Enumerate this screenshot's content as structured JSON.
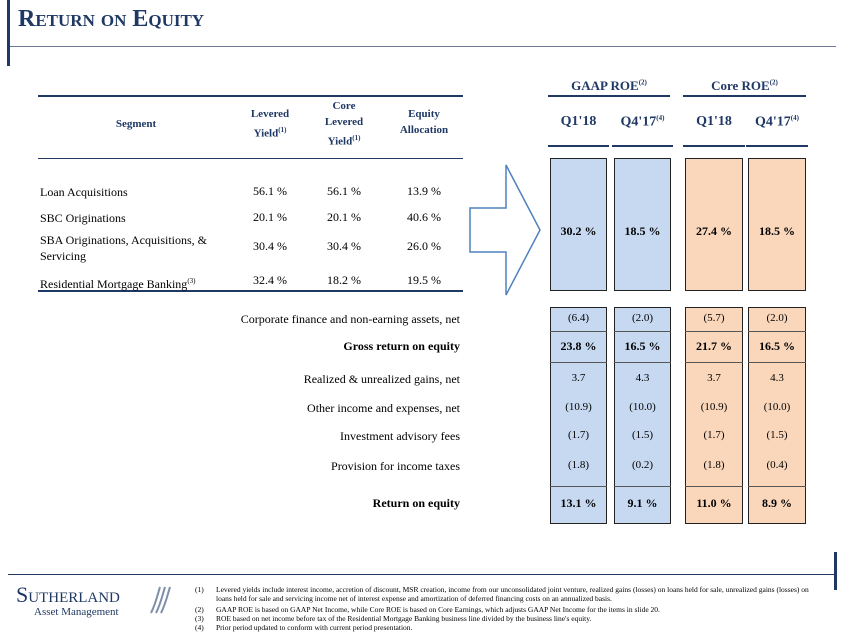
{
  "header": {
    "title": "Return on Equity"
  },
  "column_groups": [
    {
      "label": "GAAP ROE",
      "note": "(2)"
    },
    {
      "label": "Core ROE",
      "note": "(2)"
    }
  ],
  "columns": [
    {
      "label": "Q1'18"
    },
    {
      "label": "Q4'17",
      "note": "(4)"
    },
    {
      "label": "Q1'18"
    },
    {
      "label": "Q4'17",
      "note": "(4)"
    }
  ],
  "segment_table": {
    "headers": [
      {
        "label": "Segment"
      },
      {
        "label": "Levered Yield",
        "note": "(1)"
      },
      {
        "label": "Core Levered Yield",
        "note": "(1)"
      },
      {
        "label": "Equity Allocation"
      }
    ],
    "rows": [
      {
        "segment": "Loan Acquisitions",
        "cells": [
          "56.1 %",
          "56.1 %",
          "13.9 %"
        ]
      },
      {
        "segment": "SBC Originations",
        "cells": [
          "20.1 %",
          "20.1 %",
          "40.6 %"
        ]
      },
      {
        "segment": "SBA Originations, Acquisitions, & Servicing",
        "cells": [
          "30.4 %",
          "30.4 %",
          "26.0 %"
        ]
      },
      {
        "segment": "Residential Mortgage Banking",
        "note": "(3)",
        "cells": [
          "32.4 %",
          "18.2 %",
          "19.5 %"
        ]
      }
    ]
  },
  "segment_roe": [
    "30.2 %",
    "18.5 %",
    "27.4 %",
    "18.5 %"
  ],
  "roe_rows": [
    {
      "label": "Corporate finance and non-earning assets, net",
      "bold": false,
      "cells": [
        "(6.4)",
        "(2.0)",
        "(5.7)",
        "(2.0)"
      ]
    },
    {
      "label": "Gross return on equity",
      "bold": true,
      "cells": [
        "23.8 %",
        "16.5 %",
        "21.7 %",
        "16.5 %"
      ]
    },
    {
      "label": "Realized & unrealized gains, net",
      "bold": false,
      "cells": [
        "3.7",
        "4.3",
        "3.7",
        "4.3"
      ]
    },
    {
      "label": "Other income and expenses, net",
      "bold": false,
      "cells": [
        "(10.9)",
        "(10.0)",
        "(10.9)",
        "(10.0)"
      ]
    },
    {
      "label": "Investment advisory fees",
      "bold": false,
      "cells": [
        "(1.7)",
        "(1.5)",
        "(1.7)",
        "(1.5)"
      ]
    },
    {
      "label": "Provision for income taxes",
      "bold": false,
      "cells": [
        "(1.8)",
        "(0.2)",
        "(1.8)",
        "(0.4)"
      ]
    },
    {
      "label": "Return on equity",
      "bold": true,
      "cells": [
        "13.1 %",
        "9.1 %",
        "11.0 %",
        "8.9 %"
      ]
    }
  ],
  "footnotes": [
    {
      "marker": "(1)",
      "text": "Levered yields include interest income, accretion of discount, MSR creation, income from our unconsolidated joint venture, realized gains (losses) on loans held for sale, unrealized gains (losses) on loans held for sale and servicing income net of interest expense and amortization of deferred financing costs on an annualized basis."
    },
    {
      "marker": "(2)",
      "text": "GAAP ROE is based on GAAP Net Income, while Core ROE is based on Core Earnings, which adjusts GAAP Net Income for the items in slide 20."
    },
    {
      "marker": "(3)",
      "text": "ROE based on net income before tax of the Residential Mortgage Banking business line divided by the business line's equity."
    },
    {
      "marker": "(4)",
      "text": "Prior period updated to conform with current period presentation."
    }
  ],
  "logo": {
    "name": "Sutherland",
    "tagline": "Asset Management"
  }
}
